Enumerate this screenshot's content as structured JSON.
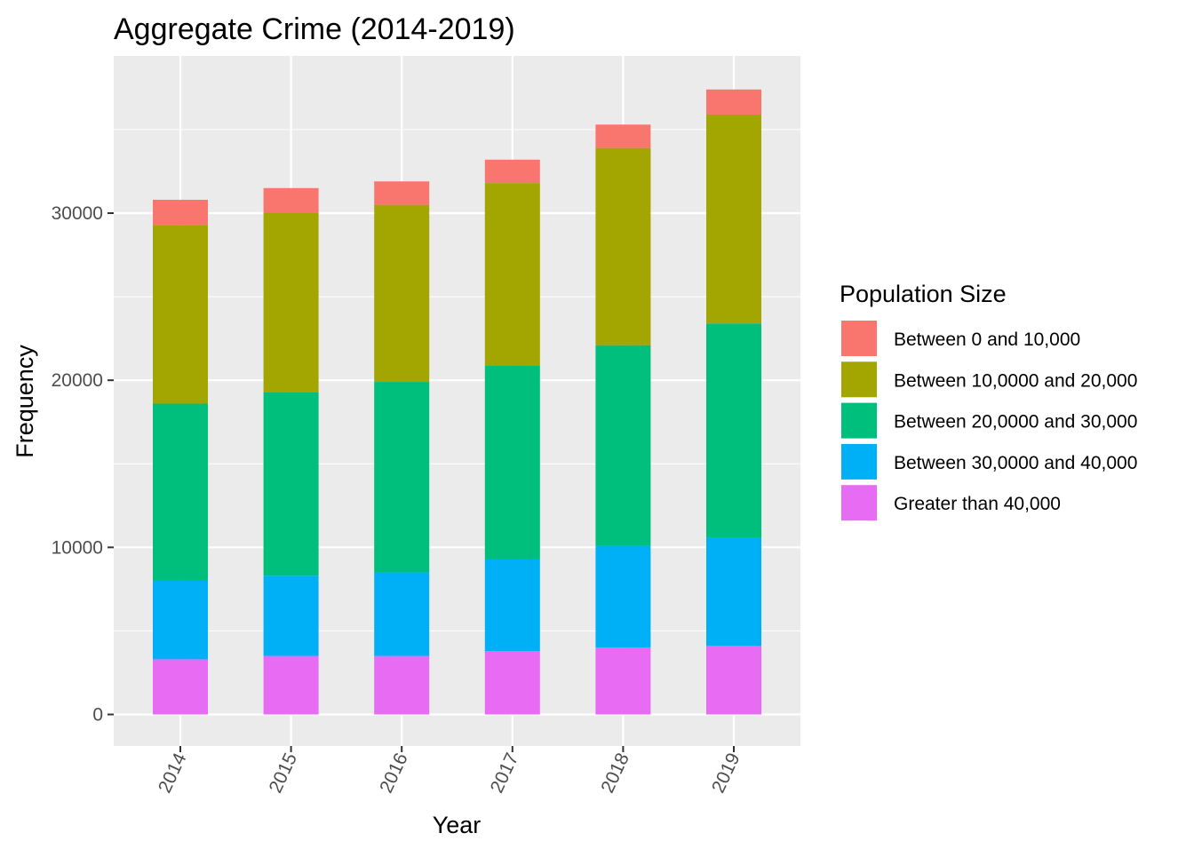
{
  "chart_data": {
    "type": "bar",
    "stacked": true,
    "title": "Aggregate Crime (2014-2019)",
    "xlabel": "Year",
    "ylabel": "Frequency",
    "ylim": [
      0,
      37500
    ],
    "yticks": [
      0,
      10000,
      20000,
      30000
    ],
    "categories": [
      "2014",
      "2015",
      "2016",
      "2017",
      "2018",
      "2019"
    ],
    "legend": {
      "title": "Population Size",
      "position": "right"
    },
    "grid": true,
    "series": [
      {
        "name": "Greater than 40,000",
        "color": "#E76BF3",
        "values": [
          3300,
          3500,
          3500,
          3800,
          4000,
          4100
        ]
      },
      {
        "name": "Between 30,0000 and 40,000",
        "color": "#00B0F6",
        "values": [
          4700,
          4800,
          5000,
          5500,
          6100,
          6500
        ]
      },
      {
        "name": "Between 20,0000 and 30,000",
        "color": "#00BF7D",
        "values": [
          10600,
          11000,
          11400,
          11600,
          12000,
          12800
        ]
      },
      {
        "name": "Between 10,0000 and 20,000",
        "color": "#A3A500",
        "values": [
          10700,
          10700,
          10600,
          10900,
          11800,
          12500
        ]
      },
      {
        "name": "Between 0 and 10,000",
        "color": "#F8766D",
        "values": [
          1500,
          1500,
          1400,
          1400,
          1400,
          1500
        ]
      }
    ]
  }
}
